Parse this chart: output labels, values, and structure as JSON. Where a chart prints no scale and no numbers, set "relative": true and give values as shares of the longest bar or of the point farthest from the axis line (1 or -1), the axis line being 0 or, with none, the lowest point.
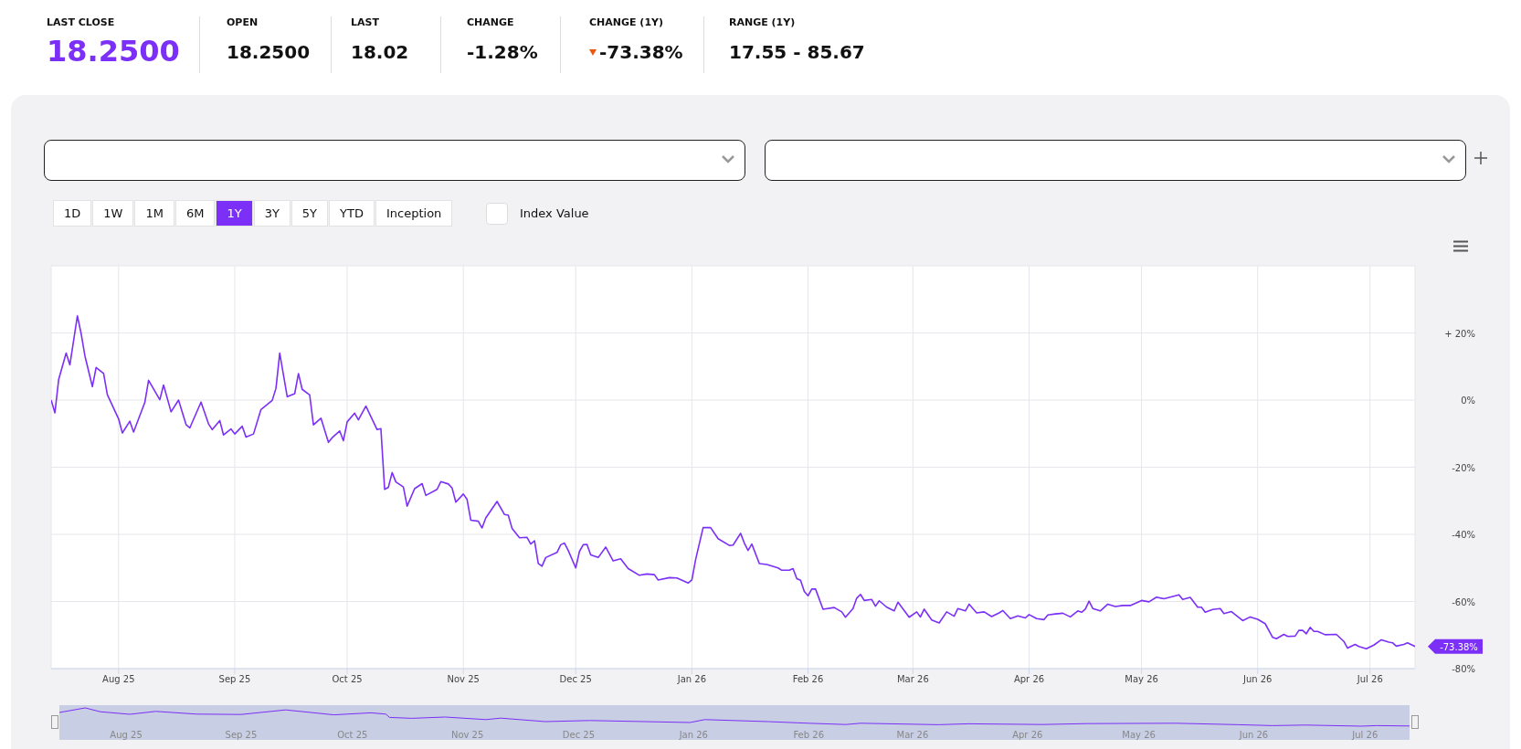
{
  "chart_data": [
    {
      "type": "line",
      "x": [
        "2025-07-14",
        "2025-07-15",
        "2025-07-16",
        "2025-07-18",
        "2025-07-19",
        "2025-07-21",
        "2025-07-22",
        "2025-07-23",
        "2025-07-25",
        "2025-07-26",
        "2025-07-28",
        "2025-07-29",
        "2025-08-01",
        "2025-08-02",
        "2025-08-04",
        "2025-08-05",
        "2025-08-08",
        "2025-08-09",
        "2025-08-12",
        "2025-08-13",
        "2025-08-15",
        "2025-08-17",
        "2025-08-19",
        "2025-08-20",
        "2025-08-23",
        "2025-08-25",
        "2025-08-26",
        "2025-08-28",
        "2025-08-29",
        "2025-08-31",
        "2025-09-01",
        "2025-09-03",
        "2025-09-04",
        "2025-09-06",
        "2025-09-08",
        "2025-09-11",
        "2025-09-12",
        "2025-09-13",
        "2025-09-15",
        "2025-09-17",
        "2025-09-18",
        "2025-09-19",
        "2025-09-21",
        "2025-09-22",
        "2025-09-24",
        "2025-09-26",
        "2025-09-27",
        "2025-09-29",
        "2025-09-30",
        "2025-10-01",
        "2025-10-03",
        "2025-10-04",
        "2025-10-06",
        "2025-10-09",
        "2025-10-10",
        "2025-10-11",
        "2025-10-12",
        "2025-10-13",
        "2025-10-14",
        "2025-10-16",
        "2025-10-17",
        "2025-10-19",
        "2025-10-21",
        "2025-10-22",
        "2025-10-25",
        "2025-10-26",
        "2025-10-28",
        "2025-10-29",
        "2025-10-30",
        "2025-11-01",
        "2025-11-02",
        "2025-11-03",
        "2025-11-05",
        "2025-11-06",
        "2025-11-07",
        "2025-11-10",
        "2025-11-12",
        "2025-11-13",
        "2025-11-14",
        "2025-11-16",
        "2025-11-18",
        "2025-11-19",
        "2025-11-20",
        "2025-11-21",
        "2025-11-22",
        "2025-11-23",
        "2025-11-26",
        "2025-11-27",
        "2025-11-28",
        "2025-11-29",
        "2025-12-01",
        "2025-12-02",
        "2025-12-03",
        "2025-12-04",
        "2025-12-05",
        "2025-12-07",
        "2025-12-09",
        "2025-12-11",
        "2025-12-13",
        "2025-12-15",
        "2025-12-18",
        "2025-12-20",
        "2025-12-22",
        "2025-12-23",
        "2025-12-26",
        "2025-12-28",
        "2025-12-31",
        "2026-01-01",
        "2026-01-02",
        "2026-01-04",
        "2026-01-06",
        "2026-01-08",
        "2026-01-11",
        "2026-01-12",
        "2026-01-14",
        "2026-01-15",
        "2026-01-16",
        "2026-01-17",
        "2026-01-19",
        "2026-01-21",
        "2026-01-24",
        "2026-01-25",
        "2026-01-27",
        "2026-01-28",
        "2026-01-29",
        "2026-01-30",
        "2026-01-31",
        "2026-02-01",
        "2026-02-02",
        "2026-02-03",
        "2026-02-05",
        "2026-02-08",
        "2026-02-10",
        "2026-02-11",
        "2026-02-13",
        "2026-02-14",
        "2026-02-15",
        "2026-02-16",
        "2026-02-18",
        "2026-02-19",
        "2026-02-20",
        "2026-02-22",
        "2026-02-24",
        "2026-02-25",
        "2026-02-28",
        "2026-03-02",
        "2026-03-03",
        "2026-03-04",
        "2026-03-06",
        "2026-03-08",
        "2026-03-10",
        "2026-03-12",
        "2026-03-13",
        "2026-03-15",
        "2026-03-16",
        "2026-03-18",
        "2026-03-20",
        "2026-03-22",
        "2026-03-24",
        "2026-03-25",
        "2026-03-27",
        "2026-03-29",
        "2026-03-31",
        "2026-04-01",
        "2026-04-03",
        "2026-04-05",
        "2026-04-06",
        "2026-04-08",
        "2026-04-10",
        "2026-04-12",
        "2026-04-14",
        "2026-04-15",
        "2026-04-16",
        "2026-04-17",
        "2026-04-18",
        "2026-04-20",
        "2026-04-22",
        "2026-04-24",
        "2026-04-26",
        "2026-04-28",
        "2026-05-01",
        "2026-05-03",
        "2026-05-05",
        "2026-05-07",
        "2026-05-11",
        "2026-05-12",
        "2026-05-14",
        "2026-05-16",
        "2026-05-17",
        "2026-05-18",
        "2026-05-20",
        "2026-05-22",
        "2026-05-23",
        "2026-05-25",
        "2026-05-28",
        "2026-05-30",
        "2026-06-01",
        "2026-06-03",
        "2026-06-05",
        "2026-06-06",
        "2026-06-08",
        "2026-06-09",
        "2026-06-11",
        "2026-06-12",
        "2026-06-13",
        "2026-06-14",
        "2026-06-15",
        "2026-06-16",
        "2026-06-17",
        "2026-06-19",
        "2026-06-22",
        "2026-06-24",
        "2026-06-25",
        "2026-06-27",
        "2026-06-28",
        "2026-06-30",
        "2026-07-02",
        "2026-07-04",
        "2026-07-06",
        "2026-07-07",
        "2026-07-08",
        "2026-07-10",
        "2026-07-11",
        "2026-07-13"
      ],
      "series": [
        {
          "color": "#7b2ff7",
          "values": [
            0,
            -3.8,
            6.1,
            14.0,
            10.5,
            25.1,
            19.8,
            13.2,
            4.0,
            9.7,
            7.9,
            1.6,
            -5.6,
            -9.8,
            -6.3,
            -9.5,
            -0.7,
            5.9,
            0.1,
            4.5,
            -3.5,
            0,
            -7.3,
            -8.3,
            -0.6,
            -7.1,
            -8.8,
            -6.1,
            -10.4,
            -8.6,
            -10.1,
            -7.8,
            -11.0,
            -10.1,
            -2.8,
            -0.1,
            3.5,
            14.0,
            1.0,
            1.9,
            7.9,
            3.2,
            1.5,
            -7.4,
            -5.4,
            -12.6,
            -11.2,
            -9.2,
            -12.1,
            -6.5,
            -3.9,
            -5.9,
            -1.8,
            -8.8,
            -8.5,
            -26.6,
            -26.0,
            -21.6,
            -24.4,
            -25.9,
            -31.6,
            -26.4,
            -24.9,
            -28.4,
            -26.6,
            -24.3,
            -25.0,
            -26.2,
            -30.4,
            -28.0,
            -29.6,
            -35.8,
            -36.1,
            -38.1,
            -35.1,
            -30.2,
            -34.1,
            -34.3,
            -38.2,
            -41.0,
            -40.9,
            -42.9,
            -41.9,
            -48.7,
            -49.5,
            -46.9,
            -45.4,
            -43.1,
            -42.6,
            -44.8,
            -50.0,
            -45.1,
            -43.1,
            -43.0,
            -46.1,
            -46.9,
            -43.8,
            -47.9,
            -47.3,
            -50.2,
            -52.2,
            -51.8,
            -52.0,
            -53.6,
            -52.9,
            -53.0,
            -54.5,
            -53.6,
            -47.5,
            -38.0,
            -38.0,
            -41.3,
            -43.3,
            -43.2,
            -39.7,
            -42.6,
            -44.8,
            -42.9,
            -48.7,
            -49.0,
            -50.0,
            -50.7,
            -50.7,
            -50.2,
            -53.2,
            -53.7,
            -57.0,
            -58.3,
            -56.3,
            -56.3,
            -62.3,
            -61.8,
            -63.1,
            -64.7,
            -62.1,
            -59.0,
            -57.9,
            -59.7,
            -59.4,
            -61.4,
            -59.8,
            -61.7,
            -62.8,
            -60.2,
            -64.7,
            -63.1,
            -64.6,
            -62.3,
            -65.5,
            -66.4,
            -63.1,
            -64.4,
            -62.1,
            -62.8,
            -60.8,
            -63.4,
            -63.1,
            -64.5,
            -63.4,
            -62.7,
            -65.1,
            -64.3,
            -64.9,
            -63.9,
            -65.1,
            -65.4,
            -64.0,
            -63.7,
            -63.5,
            -64.6,
            -62.8,
            -63.2,
            -62.3,
            -59.9,
            -62.1,
            -62.8,
            -60.8,
            -61.5,
            -61.2,
            -61.2,
            -59.7,
            -60.1,
            -58.7,
            -59.2,
            -58.0,
            -59.4,
            -58.8,
            -61.7,
            -61.7,
            -63.2,
            -62.4,
            -62.1,
            -63.6,
            -63.0,
            -65.7,
            -64.6,
            -65.3,
            -66.6,
            -70.7,
            -71.1,
            -69.8,
            -70.4,
            -70.3,
            -68.6,
            -68.6,
            -69.6,
            -67.7,
            -68.9,
            -68.9,
            -69.9,
            -69.8,
            -71.9,
            -73.9,
            -72.8,
            -73.4,
            -74.1,
            -73.0,
            -71.4,
            -72.1,
            -72.3,
            -73.3,
            -72.8,
            -72.3,
            -73.38
          ]
        }
      ],
      "xlim": [
        "2025-07-14",
        "2026-07-13"
      ],
      "xticks": [
        {
          "value": "2025-08-01",
          "label": "Aug 25"
        },
        {
          "value": "2025-09-01",
          "label": "Sep 25"
        },
        {
          "value": "2025-10-01",
          "label": "Oct 25"
        },
        {
          "value": "2025-11-01",
          "label": "Nov 25"
        },
        {
          "value": "2025-12-01",
          "label": "Dec 25"
        },
        {
          "value": "2026-01-01",
          "label": "Jan 26"
        },
        {
          "value": "2026-02-01",
          "label": "Feb 26"
        },
        {
          "value": "2026-03-01",
          "label": "Mar 26"
        },
        {
          "value": "2026-04-01",
          "label": "Apr 26"
        },
        {
          "value": "2026-05-01",
          "label": "May 26"
        },
        {
          "value": "2026-06-01",
          "label": "Jun 26"
        },
        {
          "value": "2026-07-01",
          "label": "Jul 26"
        }
      ],
      "ylim": [
        -80,
        40
      ],
      "yticks": [
        {
          "value": -80,
          "label": "-80%"
        },
        {
          "value": -60,
          "label": "-60%"
        },
        {
          "value": -40,
          "label": "-40%"
        },
        {
          "value": -20,
          "label": "-20%"
        },
        {
          "value": 0,
          "label": "0%"
        },
        {
          "value": 20,
          "label": "+ 20%"
        }
      ],
      "grid": true,
      "marker": "none",
      "line_style": "solid",
      "annotations": [
        "LAST CLOSE",
        "18.2500",
        "OPEN",
        "18.2500",
        "LAST",
        "18.02",
        "CHANGE",
        "-1.28%",
        "CHANGE (1Y)",
        "-73.38%",
        "RANGE (1Y)",
        "17.55 - 85.67",
        "1D",
        "1W",
        "1M",
        "6M",
        "1Y",
        "3Y",
        "5Y",
        "YTD",
        "Inception",
        "Index Value",
        {
          "text": "-73.38%",
          "x": "2026-07-13",
          "y": -73.38
        }
      ]
    },
    {
      "type": "line",
      "relative": true,
      "tick_labels": "x",
      "x": [
        "2025-07-14",
        "2025-07-21",
        "2025-07-25",
        "2025-08-02",
        "2025-08-09",
        "2025-08-20",
        "2025-09-01",
        "2025-09-13",
        "2025-09-26",
        "2025-10-06",
        "2025-10-10",
        "2025-10-11",
        "2025-10-17",
        "2025-10-26",
        "2025-11-06",
        "2025-11-10",
        "2025-11-22",
        "2025-12-04",
        "2025-12-31",
        "2026-01-04",
        "2026-01-21",
        "2026-02-01",
        "2026-02-11",
        "2026-02-15",
        "2026-03-08",
        "2026-03-16",
        "2026-04-05",
        "2026-04-17",
        "2026-05-11",
        "2026-05-28",
        "2026-06-06",
        "2026-06-15",
        "2026-06-30",
        "2026-07-04",
        "2026-07-13"
      ],
      "series": [
        {
          "color": "#7b2ff7",
          "values": [
            0.75,
            1.0,
            0.79,
            0.65,
            0.81,
            0.66,
            0.64,
            0.89,
            0.62,
            0.73,
            0.66,
            0.48,
            0.43,
            0.5,
            0.36,
            0.44,
            0.25,
            0.31,
            0.2,
            0.36,
            0.25,
            0.16,
            0.09,
            0.16,
            0.08,
            0.13,
            0.09,
            0.14,
            0.16,
            0.08,
            0.03,
            0.06,
            0,
            0.03,
            0.01
          ]
        }
      ],
      "xlim": [
        "2025-07-14",
        "2026-07-13"
      ],
      "xticks": [
        {
          "value": "2025-08-01",
          "label": "Aug 25"
        },
        {
          "value": "2025-09-01",
          "label": "Sep 25"
        },
        {
          "value": "2025-10-01",
          "label": "Oct 25"
        },
        {
          "value": "2025-11-01",
          "label": "Nov 25"
        },
        {
          "value": "2025-12-01",
          "label": "Dec 25"
        },
        {
          "value": "2026-01-01",
          "label": "Jan 26"
        },
        {
          "value": "2026-02-01",
          "label": "Feb 26"
        },
        {
          "value": "2026-03-01",
          "label": "Mar 26"
        },
        {
          "value": "2026-04-01",
          "label": "Apr 26"
        },
        {
          "value": "2026-05-01",
          "label": "May 26"
        },
        {
          "value": "2026-06-01",
          "label": "Jun 26"
        },
        {
          "value": "2026-07-01",
          "label": "Jul 26"
        }
      ]
    }
  ]
}
